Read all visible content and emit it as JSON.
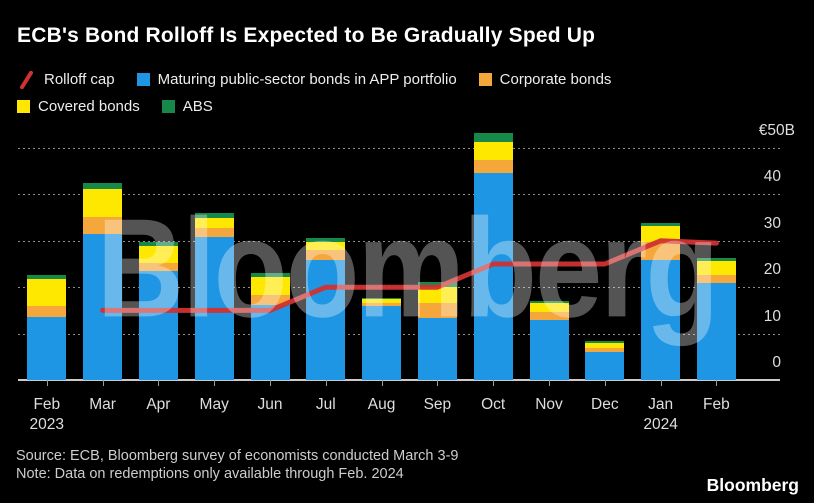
{
  "title": "ECB's Bond Rolloff Is Expected to Be Gradually Sped Up",
  "watermark": "Bloomberg",
  "logo": "Bloomberg",
  "source_line": "Source: ECB, Bloomberg survey of economists conducted March 3-9",
  "note_line": "Note: Data on redemptions only available through Feb. 2024",
  "legend": {
    "items": [
      {
        "label": "Rolloff cap",
        "type": "line",
        "color": "#cf3231"
      },
      {
        "label": "Maturing public-sector bonds in APP portfolio",
        "type": "square",
        "color": "#1f96e3"
      },
      {
        "label": "Corporate bonds",
        "type": "square",
        "color": "#f5a73b"
      },
      {
        "label": "Covered bonds",
        "type": "square",
        "color": "#ffe800"
      },
      {
        "label": "ABS",
        "type": "square",
        "color": "#16884a"
      }
    ]
  },
  "y_axis": {
    "top_label": "€50B",
    "ticks": [
      50,
      40,
      30,
      20,
      10,
      0
    ]
  },
  "x_axis": {
    "months": [
      "Feb",
      "Mar",
      "Apr",
      "May",
      "Jun",
      "Jul",
      "Aug",
      "Sep",
      "Oct",
      "Nov",
      "Dec",
      "Jan",
      "Feb"
    ],
    "years": [
      {
        "month_index": 0,
        "label": "2023"
      },
      {
        "month_index": 11,
        "label": "2024"
      }
    ]
  },
  "chart_data": {
    "type": "bar",
    "subtype": "stacked bars with step line overlay",
    "unit": "EUR billions per month",
    "categories": [
      "Feb 2023",
      "Mar",
      "Apr",
      "May",
      "Jun",
      "Jul",
      "Aug",
      "Sep",
      "Oct",
      "Nov",
      "Dec",
      "Jan 2024",
      "Feb 2024"
    ],
    "series": [
      {
        "name": "Maturing public-sector bonds in APP portfolio",
        "type": "bar",
        "color": "#1f96e3",
        "values": [
          13.6,
          31.5,
          23.5,
          30.8,
          16.2,
          25.9,
          15.9,
          13.3,
          44.7,
          12.9,
          6.1,
          25.9,
          20.9
        ]
      },
      {
        "name": "Corporate bonds",
        "type": "bar",
        "color": "#f5a73b",
        "values": [
          2.4,
          3.7,
          1.7,
          1.9,
          2.2,
          2.2,
          0.6,
          3.2,
          2.7,
          1.8,
          0.7,
          3.9,
          1.8
        ]
      },
      {
        "name": "Covered bonds",
        "type": "bar",
        "color": "#ffe800",
        "values": [
          5.8,
          6.0,
          3.7,
          2.2,
          3.9,
          1.7,
          0.9,
          3.6,
          3.9,
          1.8,
          1.1,
          3.4,
          3.0
        ]
      },
      {
        "name": "ABS",
        "type": "bar",
        "color": "#16884a",
        "values": [
          0.9,
          1.2,
          0.9,
          1.1,
          0.8,
          0.9,
          0.3,
          1.1,
          1.9,
          0.6,
          0.6,
          0.6,
          0.5
        ]
      },
      {
        "name": "Rolloff cap",
        "type": "line",
        "color": "#cf3231",
        "values": [
          null,
          15,
          15,
          15,
          15,
          20,
          20,
          20,
          25,
          25,
          25,
          30,
          29.5
        ]
      }
    ],
    "ylim": [
      0,
      50
    ],
    "grid": true,
    "legend_position": "top",
    "ylabel": "€B"
  }
}
